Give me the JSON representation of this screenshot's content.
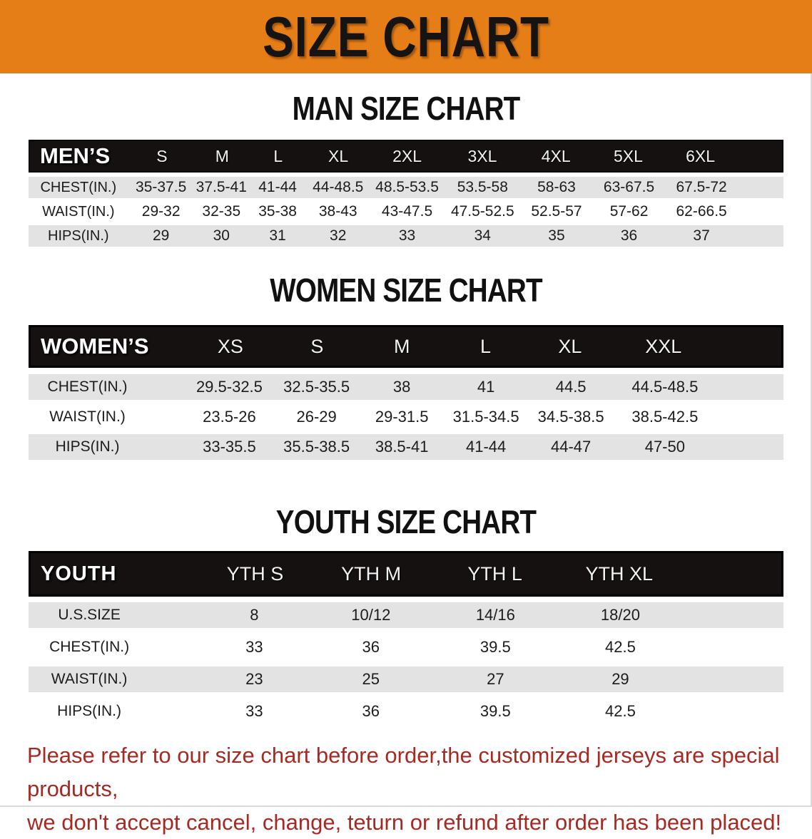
{
  "colors": {
    "banner_bg": "#E67E17",
    "header_bar": "#141110",
    "row_alt": "#E3E3E3",
    "footer_text": "#A62A22",
    "title_text": "#111111"
  },
  "banner": {
    "title": "SIZE CHART"
  },
  "sections": [
    {
      "title": "MAN SIZE CHART",
      "header_label": "MEN’S",
      "columns": [
        "S",
        "M",
        "L",
        "XL",
        "2XL",
        "3XL",
        "4XL",
        "5XL",
        "6XL"
      ],
      "rows": [
        {
          "label": "CHEST(IN.)",
          "values": [
            "35-37.5",
            "37.5-41",
            "41-44",
            "44-48.5",
            "48.5-53.5",
            "53.5-58",
            "58-63",
            "63-67.5",
            "67.5-72"
          ]
        },
        {
          "label": "WAIST(IN.)",
          "values": [
            "29-32",
            "32-35",
            "35-38",
            "38-43",
            "43-47.5",
            "47.5-52.5",
            "52.5-57",
            "57-62",
            "62-66.5"
          ]
        },
        {
          "label": "HIPS(IN.)",
          "values": [
            "29",
            "30",
            "31",
            "32",
            "33",
            "34",
            "35",
            "36",
            "37"
          ]
        }
      ]
    },
    {
      "title": "WOMEN SIZE CHART",
      "header_label": "WOMEN’S",
      "columns": [
        "XS",
        "S",
        "M",
        "L",
        "XL",
        "XXL"
      ],
      "rows": [
        {
          "label": "CHEST(IN.)",
          "values": [
            "29.5-32.5",
            "32.5-35.5",
            "38",
            "41",
            "44.5",
            "44.5-48.5"
          ]
        },
        {
          "label": "WAIST(IN.)",
          "values": [
            "23.5-26",
            "26-29",
            "29-31.5",
            "31.5-34.5",
            "34.5-38.5",
            "38.5-42.5"
          ]
        },
        {
          "label": "HIPS(IN.)",
          "values": [
            "33-35.5",
            "35.5-38.5",
            "38.5-41",
            "41-44",
            "44-47",
            "47-50"
          ]
        }
      ]
    },
    {
      "title": "YOUTH SIZE CHART",
      "header_label": "YOUTH",
      "columns": [
        "YTH S",
        "YTH M",
        "YTH L",
        "YTH XL"
      ],
      "rows": [
        {
          "label": "U.S.SIZE",
          "values": [
            "8",
            "10/12",
            "14/16",
            "18/20"
          ]
        },
        {
          "label": "CHEST(IN.)",
          "values": [
            "33",
            "36",
            "39.5",
            "42.5"
          ]
        },
        {
          "label": "WAIST(IN.)",
          "values": [
            "23",
            "25",
            "27",
            "29"
          ]
        },
        {
          "label": "HIPS(IN.)",
          "values": [
            "33",
            "36",
            "39.5",
            "42.5"
          ]
        }
      ]
    }
  ],
  "footer": {
    "line1": "Please refer to our size chart before order,the customized jerseys are special products,",
    "line2": "we don't accept cancel, change, teturn or refund after order has been placed!"
  }
}
